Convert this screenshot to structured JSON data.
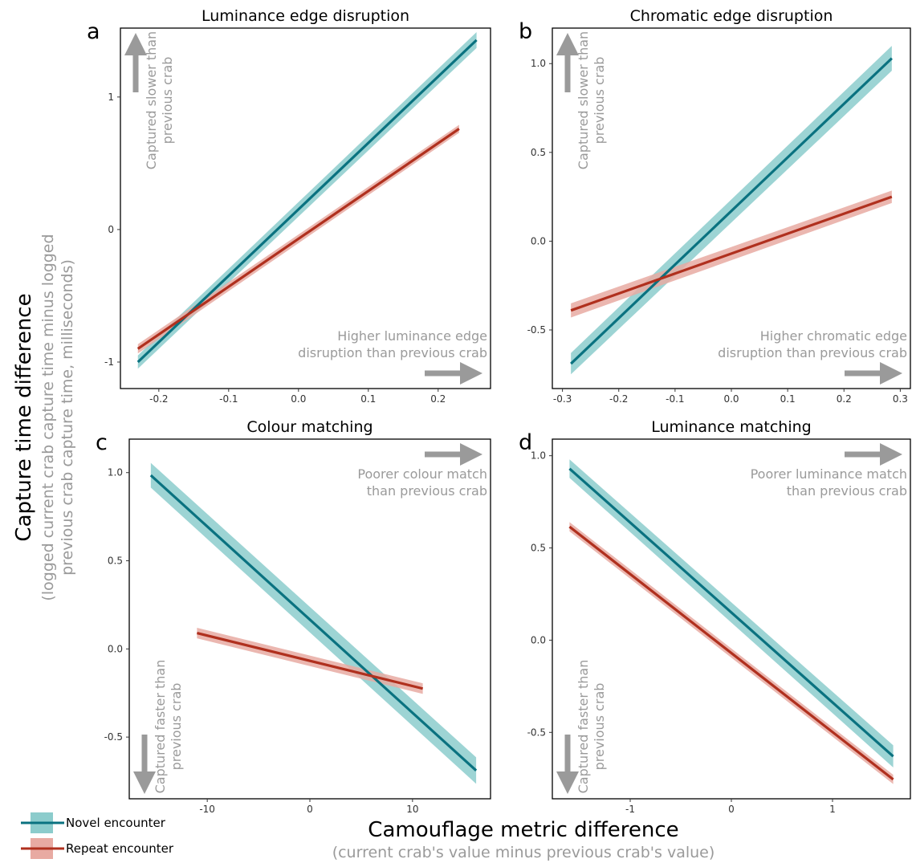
{
  "figure": {
    "ylabel": "Capture time difference",
    "ylabel_sub": [
      "(logged current crab capture time minus logged",
      "previous crab capture time, milliseconds)"
    ],
    "xlabel": "Camouflage metric difference",
    "xlabel_sub": "(current crab's value minus previous crab's value)"
  },
  "legend": {
    "items": [
      {
        "label": "Novel encounter",
        "color": "#0a7280",
        "band": "#8ccccc"
      },
      {
        "label": "Repeat encounter",
        "color": "#b0301e",
        "band": "#e8aaa2"
      }
    ]
  },
  "chart_data": [
    {
      "letter": "a",
      "type": "line",
      "title": "Luminance edge disruption",
      "xlim": [
        -0.255,
        0.275
      ],
      "ylim": [
        -1.2,
        1.52
      ],
      "xticks": [
        -0.2,
        -0.1,
        0.0,
        0.1,
        0.2
      ],
      "xtick_labels": [
        "-0.2",
        "-0.1",
        "0.0",
        "0.1",
        "0.2"
      ],
      "yticks": [
        -1,
        0,
        1
      ],
      "ytick_labels": [
        "-1",
        "0",
        "1"
      ],
      "series": [
        {
          "name": "Novel encounter",
          "x": [
            -0.23,
            0.255
          ],
          "y": [
            -1.0,
            1.43
          ],
          "ci": [
            0.05,
            0.06
          ]
        },
        {
          "name": "Repeat encounter",
          "x": [
            -0.23,
            0.23
          ],
          "y": [
            -0.9,
            0.76
          ],
          "ci": [
            0.035,
            0.03
          ]
        }
      ],
      "annotations": [
        {
          "corner": "top-left",
          "direction": "up",
          "lines": [
            "Captured slower than",
            "previous crab"
          ]
        },
        {
          "corner": "bottom-right",
          "direction": "right",
          "lines": [
            "Higher luminance edge",
            "disruption than previous crab"
          ]
        }
      ]
    },
    {
      "letter": "b",
      "type": "line",
      "title": "Chromatic edge disruption",
      "xlim": [
        -0.318,
        0.318
      ],
      "ylim": [
        -0.83,
        1.2
      ],
      "xticks": [
        -0.3,
        -0.2,
        -0.1,
        0.0,
        0.1,
        0.2,
        0.3
      ],
      "xtick_labels": [
        "-0.3",
        "-0.2",
        "-0.1",
        "0.0",
        "0.1",
        "0.2",
        "0.3"
      ],
      "yticks": [
        -0.5,
        0.0,
        0.5,
        1.0
      ],
      "ytick_labels": [
        "-0.5",
        "0.0",
        "0.5",
        "1.0"
      ],
      "series": [
        {
          "name": "Novel encounter",
          "x": [
            -0.285,
            0.285
          ],
          "y": [
            -0.69,
            1.03
          ],
          "ci": [
            0.06,
            0.07
          ]
        },
        {
          "name": "Repeat encounter",
          "x": [
            -0.285,
            0.285
          ],
          "y": [
            -0.39,
            0.25
          ],
          "ci": [
            0.04,
            0.035
          ]
        }
      ],
      "annotations": [
        {
          "corner": "top-left",
          "direction": "up",
          "lines": [
            "Captured slower than",
            "previous crab"
          ]
        },
        {
          "corner": "bottom-right",
          "direction": "right",
          "lines": [
            "Higher chromatic edge",
            "disruption than previous crab"
          ]
        }
      ]
    },
    {
      "letter": "c",
      "type": "line",
      "title": "Colour matching",
      "xlim": [
        -17.6,
        17.6
      ],
      "ylim": [
        -0.85,
        1.19
      ],
      "xticks": [
        -10,
        0,
        10
      ],
      "xtick_labels": [
        "-10",
        "0",
        "10"
      ],
      "yticks": [
        -0.5,
        0.0,
        0.5,
        1.0
      ],
      "ytick_labels": [
        "-0.5",
        "0.0",
        "0.5",
        "1.0"
      ],
      "series": [
        {
          "name": "Novel encounter",
          "x": [
            -15.5,
            16.2
          ],
          "y": [
            0.985,
            -0.69
          ],
          "ci": [
            0.07,
            0.075
          ]
        },
        {
          "name": "Repeat encounter",
          "x": [
            -11,
            11
          ],
          "y": [
            0.09,
            -0.225
          ],
          "ci": [
            0.03,
            0.03
          ]
        }
      ],
      "annotations": [
        {
          "corner": "top-right",
          "direction": "right",
          "lines": [
            "Poorer colour match",
            "than previous crab"
          ]
        },
        {
          "corner": "bottom-left",
          "direction": "down",
          "lines": [
            "Captured faster than",
            "previous crab"
          ]
        }
      ]
    },
    {
      "letter": "d",
      "type": "line",
      "title": "Luminance matching",
      "xlim": [
        -1.77,
        1.77
      ],
      "ylim": [
        -0.86,
        1.09
      ],
      "xticks": [
        -1,
        0,
        1
      ],
      "xtick_labels": [
        "-1",
        "0",
        "1"
      ],
      "yticks": [
        -0.5,
        0.0,
        0.5,
        1.0
      ],
      "ytick_labels": [
        "-0.5",
        "0.0",
        "0.5",
        "1.0"
      ],
      "series": [
        {
          "name": "Novel encounter",
          "x": [
            -1.6,
            1.6
          ],
          "y": [
            0.93,
            -0.63
          ],
          "ci": [
            0.05,
            0.06
          ]
        },
        {
          "name": "Repeat encounter",
          "x": [
            -1.6,
            1.6
          ],
          "y": [
            0.615,
            -0.755
          ],
          "ci": [
            0.025,
            0.025
          ]
        }
      ],
      "annotations": [
        {
          "corner": "top-right",
          "direction": "right",
          "lines": [
            "Poorer luminance match",
            "than previous crab"
          ]
        },
        {
          "corner": "bottom-left",
          "direction": "down",
          "lines": [
            "Captured faster than",
            "previous crab"
          ]
        }
      ]
    }
  ]
}
